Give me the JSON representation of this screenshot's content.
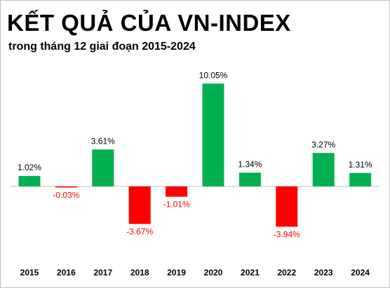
{
  "title": "KẾT QUẢ CỦA VN-INDEX",
  "subtitle": "trong tháng 12 giai đoạn 2015-2024",
  "colors": {
    "positive": "#00b050",
    "negative": "#ff0000",
    "axis": "#bfbfbf",
    "positive_label": "#000000",
    "negative_label": "#ff0000"
  },
  "chart_data": {
    "type": "bar",
    "title": "KẾT QUẢ CỦA VN-INDEX",
    "subtitle": "trong tháng 12 giai đoạn 2015-2024",
    "categories": [
      "2015",
      "2016",
      "2017",
      "2018",
      "2019",
      "2020",
      "2021",
      "2022",
      "2023",
      "2024"
    ],
    "values": [
      1.02,
      -0.03,
      3.61,
      -3.67,
      -1.01,
      10.05,
      1.34,
      -3.94,
      3.27,
      1.31
    ],
    "data_labels": [
      "1.02%",
      "-0.03%",
      "3.61%",
      "-3.67%",
      "-1.01%",
      "10.05%",
      "1.34%",
      "-3.94%",
      "3.27%",
      "1.31%"
    ],
    "xlabel": "",
    "ylabel": "",
    "grid": false,
    "legend": "none"
  }
}
